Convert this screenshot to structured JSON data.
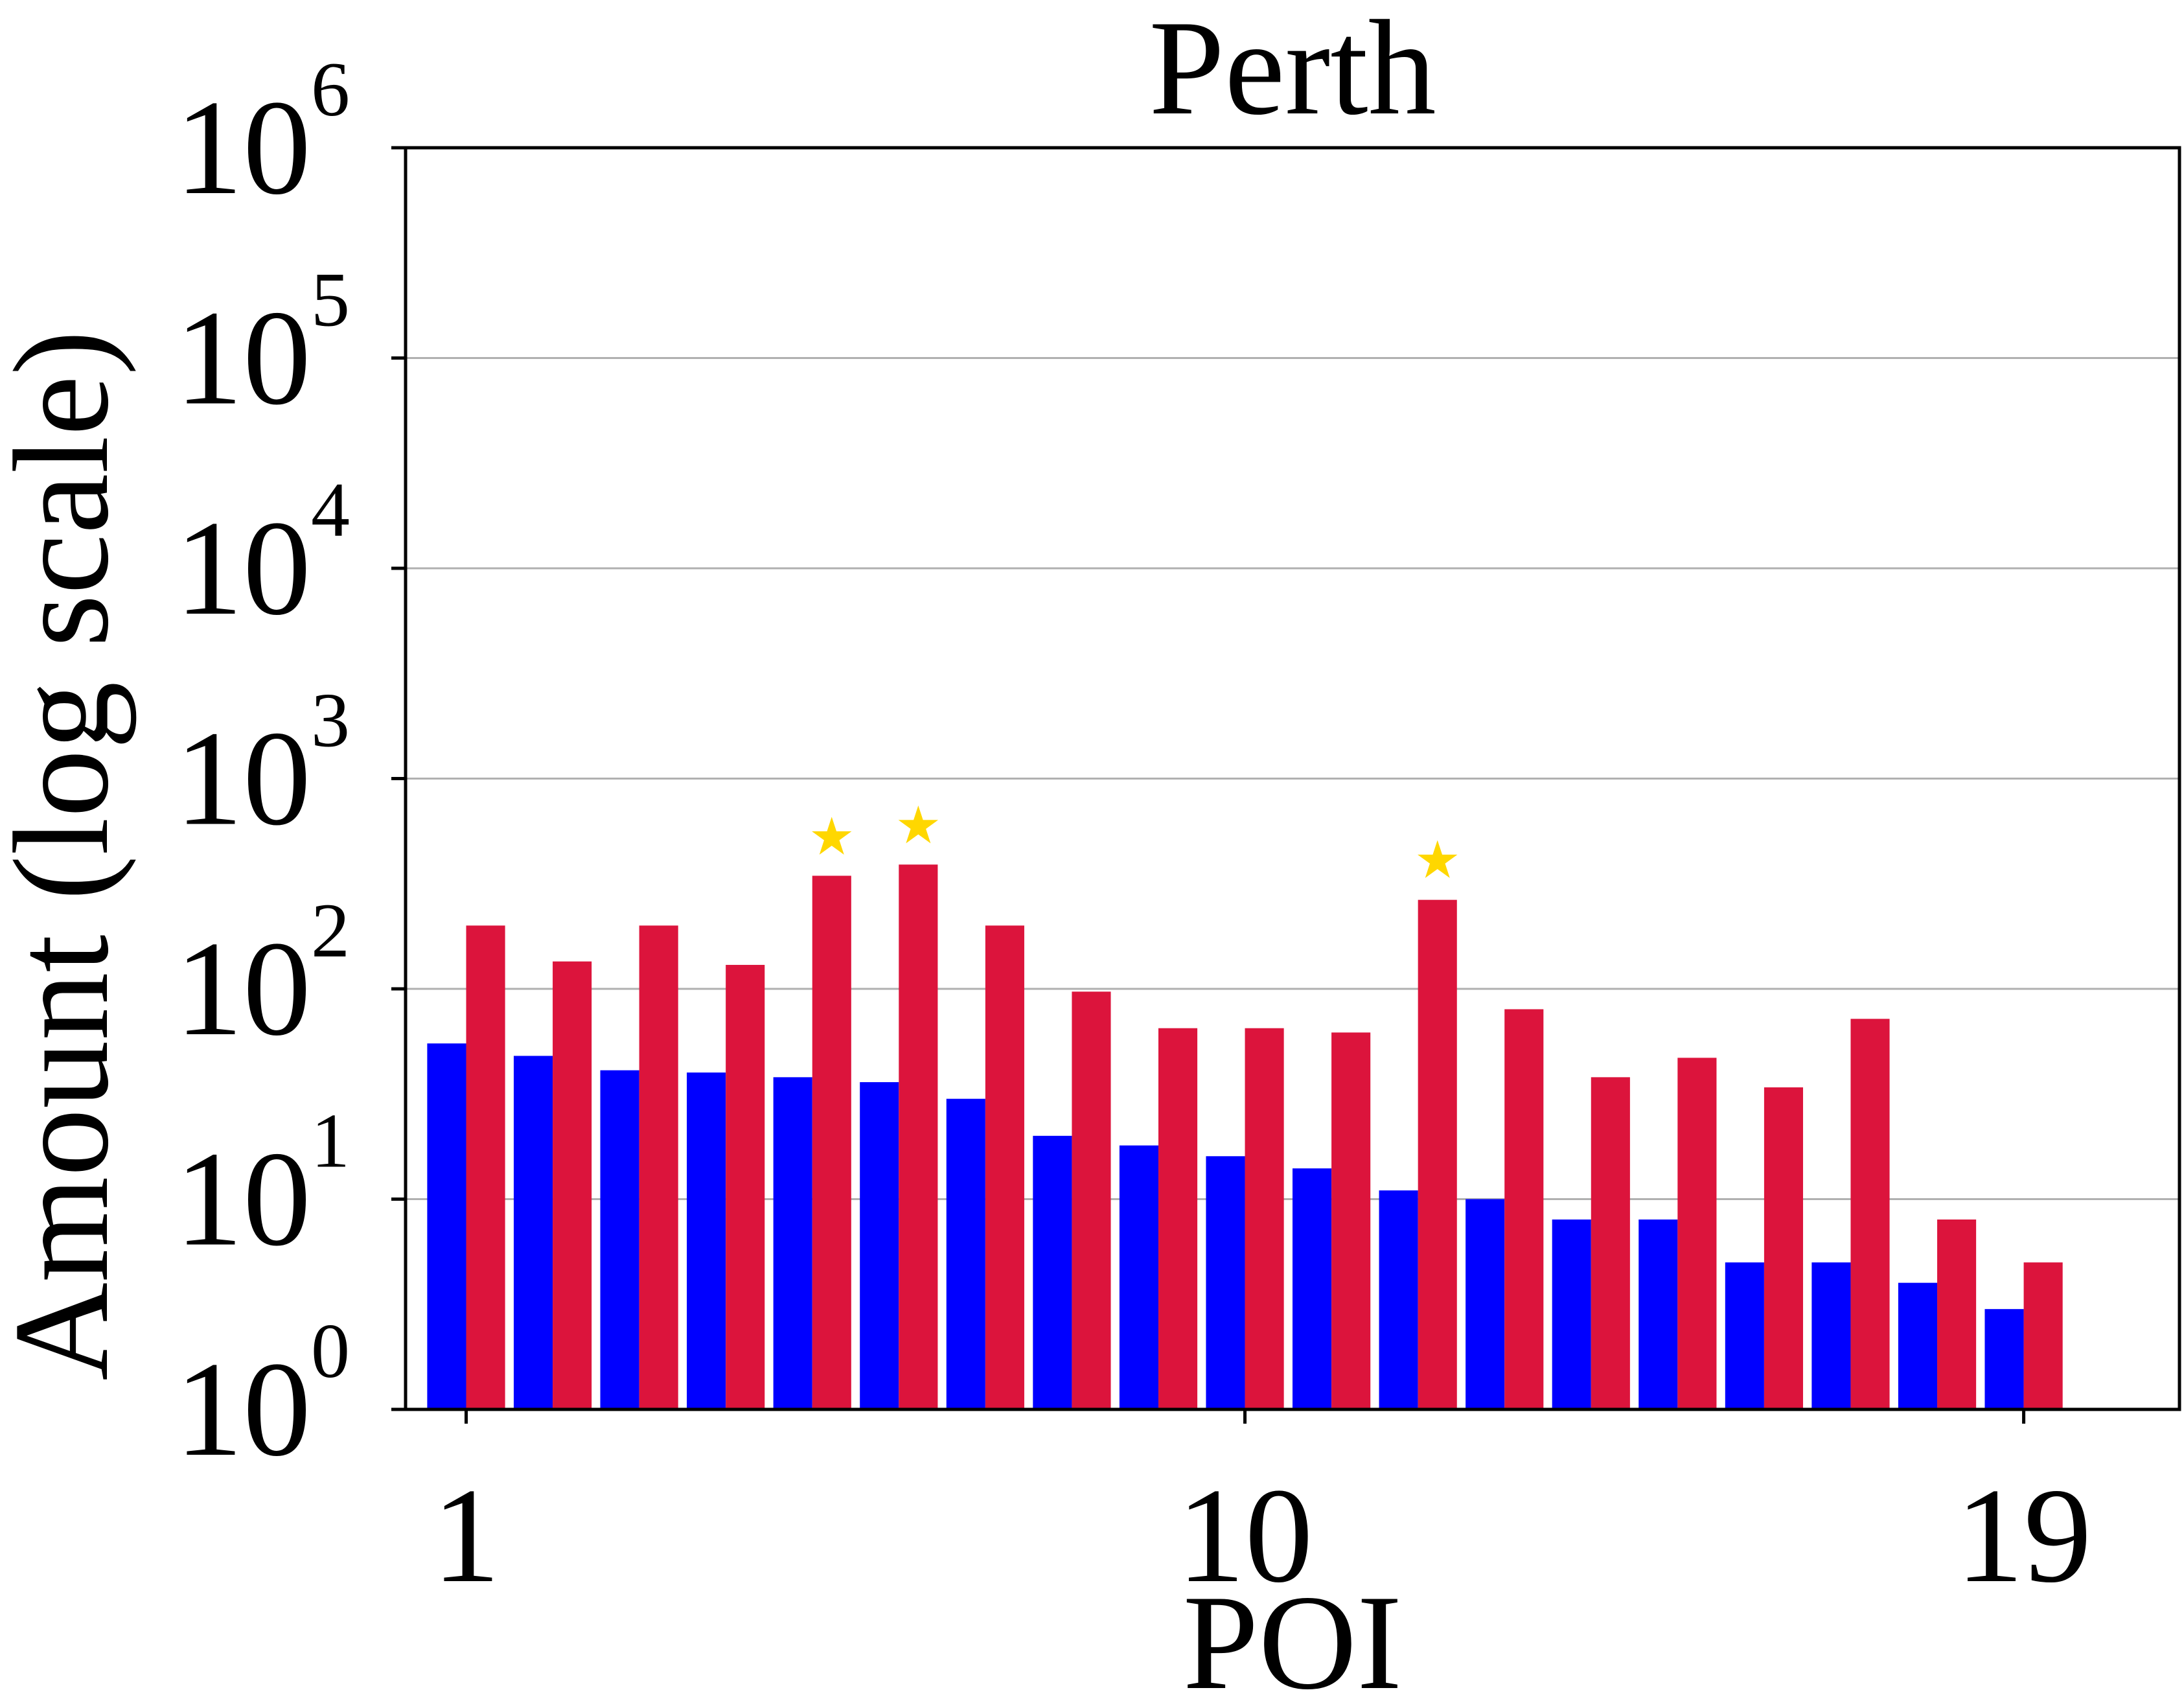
{
  "chart_data": {
    "type": "bar",
    "title": "Perth",
    "xlabel": "POI",
    "ylabel": "Amount (log scale)",
    "yscale": "log",
    "ylim": [
      1,
      1000000
    ],
    "xlim": [
      0.3,
      20.8
    ],
    "grid": "y",
    "x_ticks": [
      1,
      10,
      19
    ],
    "x_tick_labels": [
      "1",
      "10",
      "19"
    ],
    "y_ticks": [
      1,
      10,
      100,
      1000,
      10000,
      100000,
      1000000
    ],
    "y_tick_labels": [
      {
        "base": "10",
        "exp": "0"
      },
      {
        "base": "10",
        "exp": "1"
      },
      {
        "base": "10",
        "exp": "2"
      },
      {
        "base": "10",
        "exp": "3"
      },
      {
        "base": "10",
        "exp": "4"
      },
      {
        "base": "10",
        "exp": "5"
      },
      {
        "base": "10",
        "exp": "6"
      }
    ],
    "categories": [
      1,
      2,
      3,
      4,
      5,
      6,
      7,
      8,
      9,
      10,
      11,
      12,
      13,
      14,
      15,
      16,
      17,
      18,
      19
    ],
    "series": [
      {
        "color": "#0000ff",
        "values": [
          55,
          48,
          41,
          40,
          38,
          36,
          30,
          20,
          18,
          16,
          14,
          11,
          10,
          8,
          8,
          5,
          5,
          4,
          3
        ]
      },
      {
        "color": "#dc143c",
        "values": [
          200,
          135,
          200,
          130,
          345,
          390,
          200,
          97,
          65,
          65,
          62,
          265,
          80,
          38,
          47,
          34,
          72,
          8,
          5
        ]
      }
    ],
    "markers": {
      "symbol": "★",
      "color": "#ffd700",
      "points": [
        {
          "poi": 5,
          "value": 530
        },
        {
          "poi": 6,
          "value": 600
        },
        {
          "poi": 12,
          "value": 410
        }
      ]
    }
  }
}
